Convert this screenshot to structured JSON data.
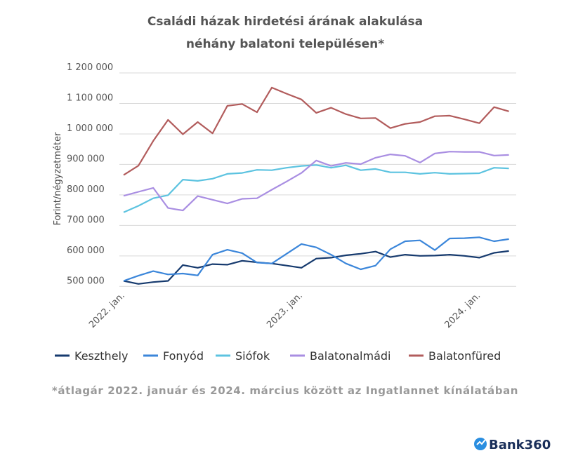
{
  "chart_data": {
    "type": "line",
    "title": [
      "Családi házak hirdetési árának alakulása",
      "néhány balatoni településen*"
    ],
    "ylabel": "Forint/négyzetméter",
    "xlabel": "",
    "ylim": [
      500000,
      1200000
    ],
    "yticks": [
      500000,
      600000,
      700000,
      800000,
      900000,
      1000000,
      1100000,
      1200000
    ],
    "ytick_labels": [
      "500 000",
      "600 000",
      "700 000",
      "800 000",
      "900 000",
      "1 000 000",
      "1 100 000",
      "1 200 000"
    ],
    "xtick_labels": [
      {
        "index": 0,
        "label": "2022. jan."
      },
      {
        "index": 12,
        "label": "2023. jan."
      },
      {
        "index": 24,
        "label": "2024. jan."
      }
    ],
    "x_count": 27,
    "grid": true,
    "legend_position": "bottom",
    "series": [
      {
        "name": "Keszthely",
        "color": "#163a6e",
        "values": [
          518000,
          508000,
          514000,
          518000,
          570000,
          561000,
          573000,
          571000,
          584000,
          579000,
          575000,
          568000,
          561000,
          591000,
          594000,
          602000,
          607000,
          614000,
          596000,
          604000,
          600000,
          601000,
          604000,
          600000,
          594000,
          610000,
          616000
        ]
      },
      {
        "name": "Fonyód",
        "color": "#3b86da",
        "values": [
          518000,
          535000,
          550000,
          539000,
          542000,
          536000,
          604000,
          620000,
          609000,
          578000,
          575000,
          607000,
          639000,
          628000,
          604000,
          575000,
          556000,
          568000,
          622000,
          648000,
          651000,
          619000,
          657000,
          658000,
          661000,
          648000,
          655000
        ]
      },
      {
        "name": "Siófok",
        "color": "#5cc3e0",
        "values": [
          743000,
          764000,
          789000,
          799000,
          850000,
          846000,
          853000,
          869000,
          872000,
          882000,
          881000,
          889000,
          895000,
          898000,
          889000,
          897000,
          881000,
          885000,
          874000,
          874000,
          869000,
          873000,
          869000,
          870000,
          871000,
          889000,
          887000
        ]
      },
      {
        "name": "Balatonalmádi",
        "color": "#a98ee2",
        "values": [
          797000,
          810000,
          823000,
          757000,
          749000,
          796000,
          784000,
          772000,
          787000,
          789000,
          817000,
          844000,
          872000,
          913000,
          895000,
          905000,
          901000,
          922000,
          933000,
          928000,
          906000,
          936000,
          942000,
          941000,
          941000,
          929000,
          931000
        ]
      },
      {
        "name": "Balatonfüred",
        "color": "#b25c5c",
        "values": [
          865000,
          896000,
          977000,
          1046000,
          999000,
          1039000,
          1002000,
          1092000,
          1098000,
          1071000,
          1152000,
          1132000,
          1113000,
          1069000,
          1086000,
          1065000,
          1051000,
          1052000,
          1019000,
          1033000,
          1039000,
          1058000,
          1060000,
          1048000,
          1035000,
          1088000,
          1074000
        ]
      }
    ],
    "footnote": "*átlagár 2022. január és 2024. március között az Ingatlannet kínálatában"
  },
  "brand": {
    "logo_text": "Bank360"
  }
}
